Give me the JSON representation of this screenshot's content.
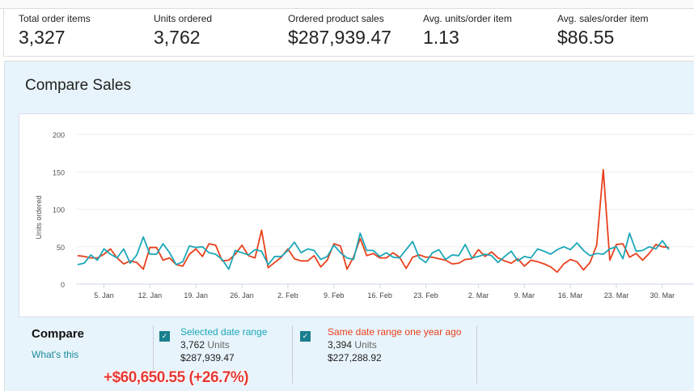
{
  "kpis": [
    {
      "label": "Total order items",
      "value": "3,327"
    },
    {
      "label": "Units ordered",
      "value": "3,762"
    },
    {
      "label": "Ordered product sales",
      "value": "$287,939.47"
    },
    {
      "label": "Avg. units/order item",
      "value": "1.13"
    },
    {
      "label": "Avg. sales/order item",
      "value": "$86.55"
    }
  ],
  "panel": {
    "title": "Compare Sales"
  },
  "compare": {
    "title": "Compare",
    "whats_this": "What's this",
    "selected": {
      "label": "Selected date range",
      "units": "3,762",
      "units_label": "Units",
      "sales": "$287,939.47",
      "color": "#1ba8b8",
      "checked": true
    },
    "previous": {
      "label": "Same date range one year ago",
      "units": "3,394",
      "units_label": "Units",
      "sales": "$227,288.92",
      "color": "#e8401c",
      "checked": true
    },
    "difference": "+$60,650.55 (+26.7%)"
  },
  "chart_data": {
    "type": "line",
    "ylabel": "Units ordered",
    "ylim": [
      0,
      200
    ],
    "yticks": [
      0,
      50,
      100,
      150,
      200
    ],
    "grid": true,
    "xticks": [
      "5. Jan",
      "12. Jan",
      "19. Jan",
      "26. Jan",
      "2. Feb",
      "9. Feb",
      "16. Feb",
      "23. Feb",
      "2. Mar",
      "9. Mar",
      "16. Mar",
      "23. Mar",
      "30. Mar"
    ],
    "x": [
      "1. Jan",
      "2. Jan",
      "3. Jan",
      "4. Jan",
      "5. Jan",
      "6. Jan",
      "7. Jan",
      "8. Jan",
      "9. Jan",
      "10. Jan",
      "11. Jan",
      "12. Jan",
      "13. Jan",
      "14. Jan",
      "15. Jan",
      "16. Jan",
      "17. Jan",
      "18. Jan",
      "19. Jan",
      "20. Jan",
      "21. Jan",
      "22. Jan",
      "23. Jan",
      "24. Jan",
      "25. Jan",
      "26. Jan",
      "27. Jan",
      "28. Jan",
      "29. Jan",
      "30. Jan",
      "31. Jan",
      "1. Feb",
      "2. Feb",
      "3. Feb",
      "4. Feb",
      "5. Feb",
      "6. Feb",
      "7. Feb",
      "8. Feb",
      "9. Feb",
      "10. Feb",
      "11. Feb",
      "12. Feb",
      "13. Feb",
      "14. Feb",
      "15. Feb",
      "16. Feb",
      "17. Feb",
      "18. Feb",
      "19. Feb",
      "20. Feb",
      "21. Feb",
      "22. Feb",
      "23. Feb",
      "24. Feb",
      "25. Feb",
      "26. Feb",
      "27. Feb",
      "28. Feb",
      "29. Feb",
      "1. Mar",
      "2. Mar",
      "3. Mar",
      "4. Mar",
      "5. Mar",
      "6. Mar",
      "7. Mar",
      "8. Mar",
      "9. Mar",
      "10. Mar",
      "11. Mar",
      "12. Mar",
      "13. Mar",
      "14. Mar",
      "15. Mar",
      "16. Mar",
      "17. Mar",
      "18. Mar",
      "19. Mar",
      "20. Mar",
      "21. Mar",
      "22. Mar",
      "23. Mar",
      "24. Mar",
      "25. Mar",
      "26. Mar",
      "27. Mar",
      "28. Mar",
      "29. Mar",
      "30. Mar",
      "31. Mar"
    ],
    "series": [
      {
        "name": "Selected date range",
        "color": "#1ba8b8",
        "values": [
          26,
          28,
          39,
          32,
          47,
          40,
          35,
          47,
          28,
          39,
          63,
          40,
          40,
          54,
          42,
          26,
          30,
          51,
          49,
          50,
          42,
          40,
          33,
          20,
          45,
          42,
          39,
          46,
          44,
          26,
          37,
          37,
          45,
          56,
          42,
          47,
          45,
          33,
          37,
          52,
          42,
          35,
          33,
          68,
          45,
          45,
          37,
          42,
          36,
          35,
          46,
          57,
          35,
          29,
          42,
          46,
          33,
          39,
          38,
          53,
          35,
          37,
          40,
          38,
          29,
          37,
          44,
          31,
          37,
          35,
          47,
          44,
          40,
          46,
          50,
          46,
          55,
          45,
          38,
          41,
          40,
          47,
          50,
          34,
          68,
          44,
          45,
          50,
          47,
          58,
          46
        ]
      },
      {
        "name": "Same date range one year ago",
        "color": "#e8401c",
        "values": [
          38,
          37,
          35,
          35,
          40,
          47,
          35,
          27,
          31,
          29,
          20,
          49,
          49,
          32,
          35,
          26,
          24,
          40,
          47,
          37,
          54,
          52,
          31,
          32,
          40,
          52,
          38,
          35,
          72,
          22,
          29,
          36,
          47,
          34,
          31,
          31,
          38,
          23,
          32,
          54,
          51,
          20,
          36,
          61,
          38,
          41,
          35,
          35,
          42,
          36,
          21,
          36,
          39,
          36,
          36,
          34,
          32,
          27,
          28,
          33,
          34,
          46,
          37,
          43,
          35,
          31,
          28,
          34,
          24,
          32,
          30,
          27,
          23,
          16,
          27,
          33,
          30,
          19,
          29,
          52,
          153,
          32,
          53,
          54,
          36,
          41,
          32,
          41,
          53,
          50,
          49
        ]
      }
    ]
  }
}
